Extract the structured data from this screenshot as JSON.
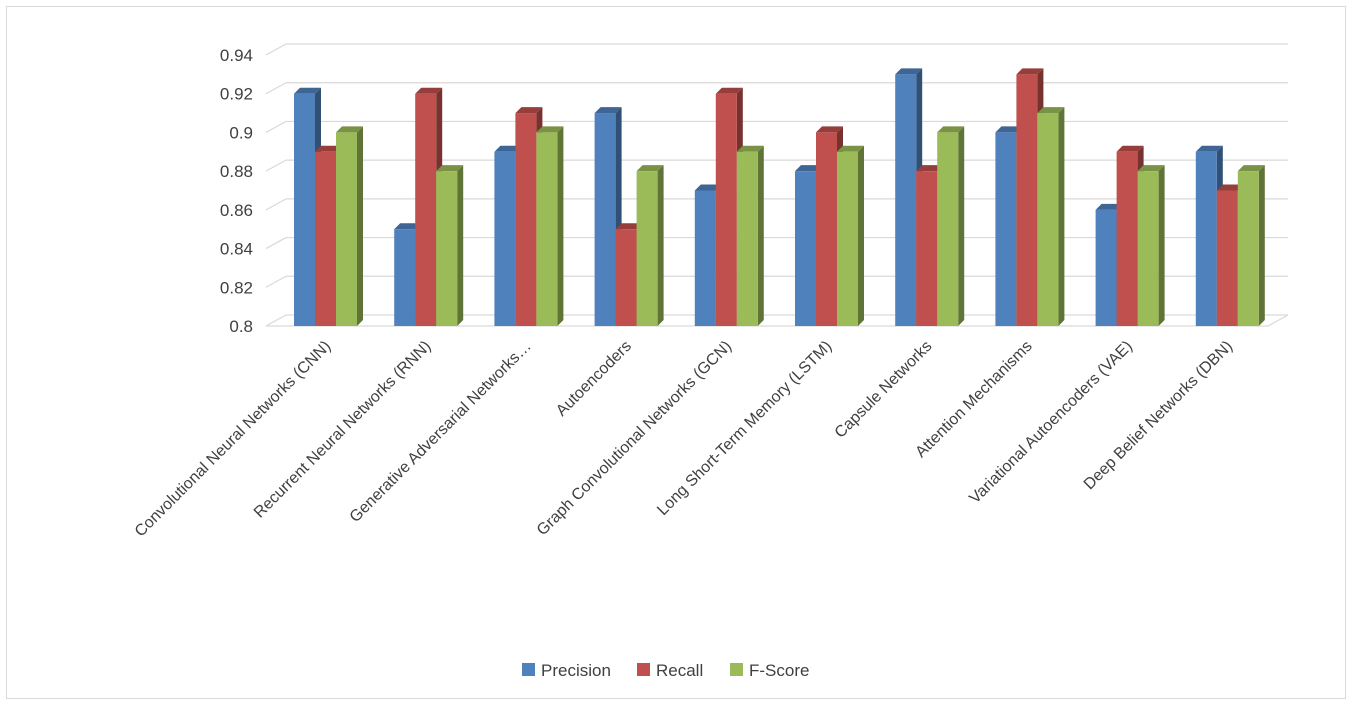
{
  "chart_data": {
    "type": "bar",
    "categories": [
      "Convolutional Neural Networks (CNN)",
      "Recurrent Neural Networks (RNN)",
      "Generative Adversarial Networks…",
      "Autoencoders",
      "Graph Convolutional Networks (GCN)",
      "Long Short-Term Memory (LSTM)",
      "Capsule Networks",
      "Attention Mechanisms",
      "Variational Autoencoders (VAE)",
      "Deep Belief Networks (DBN)"
    ],
    "series": [
      {
        "name": "Precision",
        "color": "#4f81bd",
        "values": [
          0.92,
          0.85,
          0.89,
          0.91,
          0.87,
          0.88,
          0.93,
          0.9,
          0.86,
          0.89
        ]
      },
      {
        "name": "Recall",
        "color": "#c0504d",
        "values": [
          0.89,
          0.92,
          0.91,
          0.85,
          0.92,
          0.9,
          0.88,
          0.93,
          0.89,
          0.87
        ]
      },
      {
        "name": "F-Score",
        "color": "#9bbb59",
        "values": [
          0.9,
          0.88,
          0.9,
          0.88,
          0.89,
          0.89,
          0.9,
          0.91,
          0.88,
          0.88
        ]
      }
    ],
    "ylim": [
      0.8,
      0.94
    ],
    "yticks": [
      "0.8",
      "0.82",
      "0.84",
      "0.86",
      "0.88",
      "0.9",
      "0.92",
      "0.94"
    ],
    "grid": true,
    "legend_position": "bottom",
    "style": "3d-clustered-column"
  }
}
